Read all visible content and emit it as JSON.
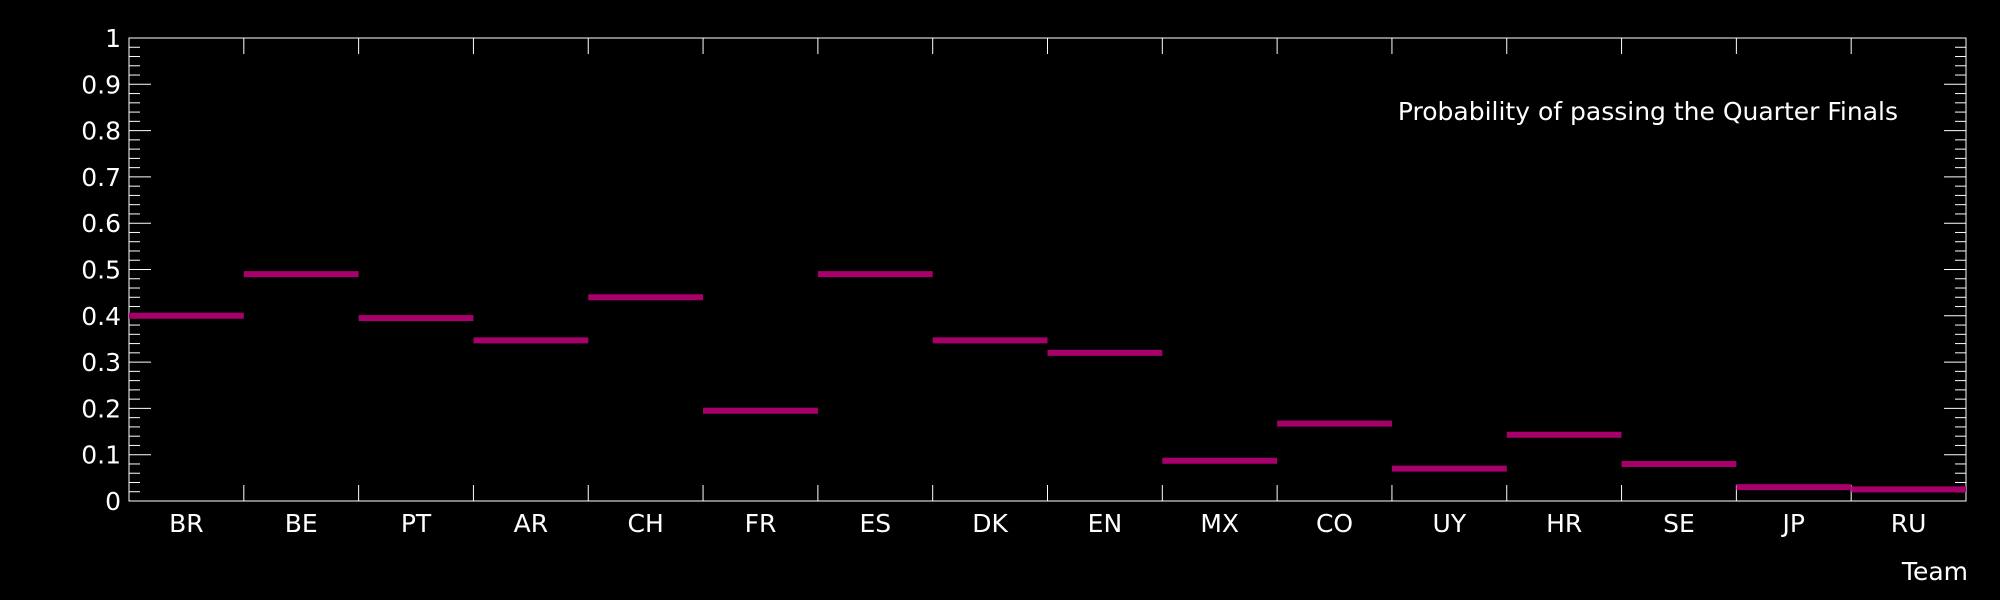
{
  "chart_data": {
    "type": "bar",
    "title": "Probability of passing the Quarter Finals",
    "xlabel": "Team",
    "ylabel": "",
    "categories": [
      "BR",
      "BE",
      "PT",
      "AR",
      "CH",
      "FR",
      "ES",
      "DK",
      "EN",
      "MX",
      "CO",
      "UY",
      "HR",
      "SE",
      "JP",
      "RU"
    ],
    "values": [
      0.4,
      0.49,
      0.395,
      0.347,
      0.44,
      0.195,
      0.49,
      0.347,
      0.32,
      0.087,
      0.167,
      0.07,
      0.143,
      0.08,
      0.03,
      0.025
    ],
    "ylim": [
      0,
      1
    ],
    "yticks": [
      "0",
      "0.1",
      "0.2",
      "0.3",
      "0.4",
      "0.5",
      "0.6",
      "0.7",
      "0.8",
      "0.9",
      "1"
    ],
    "grid": false,
    "legend": "none",
    "style": "horizontal-step markers",
    "colors": {
      "background": "#000000",
      "axes": "#ffffff",
      "series": "#a8006b"
    }
  }
}
